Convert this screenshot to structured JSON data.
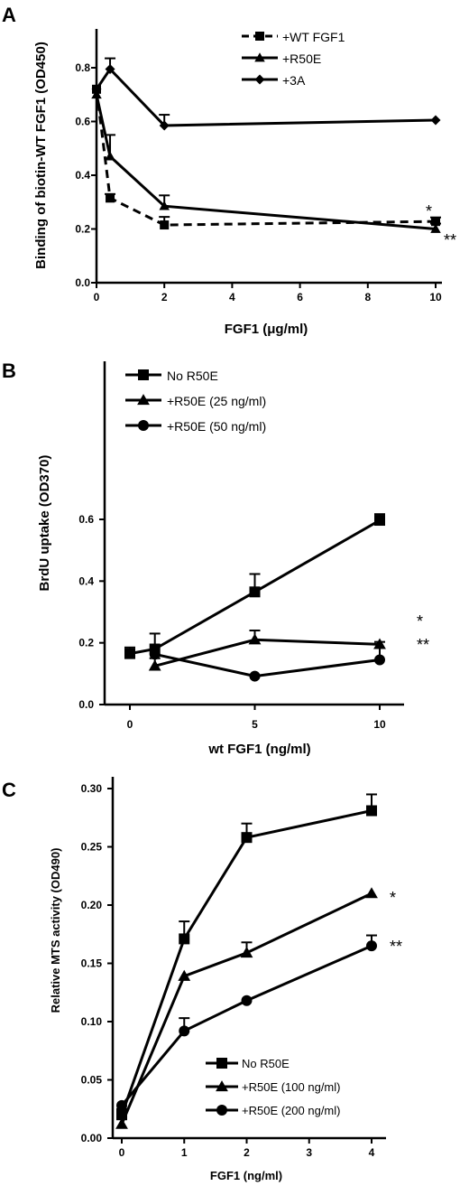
{
  "chart_data": [
    {
      "panel": "A",
      "type": "line",
      "xlabel": "FGF1 (μg/ml)",
      "ylabel": "Binding of biotin-WT FGF1 (OD450)",
      "xlim": [
        0,
        10
      ],
      "ylim": [
        0,
        0.8
      ],
      "xticks": [
        "0",
        "2",
        "4",
        "6",
        "8",
        "10"
      ],
      "yticks": [
        "0.0",
        "0.2",
        "0.4",
        "0.6",
        "0.8"
      ],
      "legend_position": "top-right",
      "annotations": [
        "*",
        "**"
      ],
      "series": [
        {
          "name": "+WT FGF1",
          "marker": "square",
          "dashed": true,
          "x": [
            0,
            0.4,
            2,
            10
          ],
          "y": [
            0.72,
            0.315,
            0.215,
            0.228
          ],
          "err": [
            0,
            0.015,
            0.03,
            0.015
          ]
        },
        {
          "name": "+R50E",
          "marker": "triangle",
          "dashed": false,
          "x": [
            0,
            0.4,
            2,
            10
          ],
          "y": [
            0.7,
            0.47,
            0.285,
            0.2
          ],
          "err": [
            0,
            0.08,
            0.04,
            0.02
          ]
        },
        {
          "name": "+3A",
          "marker": "diamond",
          "dashed": false,
          "x": [
            0,
            0.4,
            2,
            10
          ],
          "y": [
            0.72,
            0.795,
            0.585,
            0.605
          ],
          "err": [
            0,
            0.04,
            0.04,
            0
          ]
        }
      ]
    },
    {
      "panel": "B",
      "type": "line",
      "xlabel": "wt FGF1 (ng/ml)",
      "ylabel": "BrdU uptake (OD370)",
      "xlim": [
        -1,
        12
      ],
      "ylim": [
        0,
        0.7
      ],
      "xticks": [
        "0",
        "5",
        "10"
      ],
      "yticks": [
        "0.0",
        "0.2",
        "0.4",
        "0.6"
      ],
      "legend_position": "top-left",
      "annotations": [
        "*",
        "**"
      ],
      "series": [
        {
          "name": "No R50E",
          "marker": "square",
          "dashed": false,
          "x": [
            0,
            1,
            5,
            10
          ],
          "y": [
            0.165,
            0.18,
            0.365,
            0.597
          ],
          "err": [
            0.02,
            0.05,
            0.058,
            0.02
          ]
        },
        {
          "name": "+R50E (25 ng/ml)",
          "marker": "triangle",
          "dashed": false,
          "x": [
            1,
            5,
            10
          ],
          "y": [
            0.125,
            0.21,
            0.195
          ],
          "err": [
            0.025,
            0.03,
            0
          ]
        },
        {
          "name": "+R50E (50 ng/ml)",
          "marker": "circle",
          "dashed": false,
          "x": [
            1,
            5,
            10
          ],
          "y": [
            0.163,
            0.092,
            0.145
          ],
          "err": [
            0,
            0,
            0.058
          ]
        }
      ]
    },
    {
      "panel": "C",
      "type": "line",
      "xlabel": "FGF1 (ng/ml)",
      "ylabel": "Relative MTS activity (OD490)",
      "xlim": [
        0,
        4.2
      ],
      "ylim": [
        0,
        0.31
      ],
      "xticks": [
        "0",
        "1",
        "2",
        "3",
        "4"
      ],
      "yticks": [
        "0.00",
        "0.05",
        "0.10",
        "0.15",
        "0.20",
        "0.25",
        "0.30"
      ],
      "legend_position": "bottom-right",
      "annotations": [
        "*",
        "**"
      ],
      "series": [
        {
          "name": "No R50E",
          "marker": "square",
          "dashed": false,
          "x": [
            0,
            1,
            2,
            4
          ],
          "y": [
            0.02,
            0.171,
            0.258,
            0.281
          ],
          "err": [
            0.005,
            0.015,
            0.012,
            0.014
          ]
        },
        {
          "name": "+R50E (100 ng/ml)",
          "marker": "triangle",
          "dashed": false,
          "x": [
            0,
            1,
            2,
            4
          ],
          "y": [
            0.012,
            0.139,
            0.159,
            0.21
          ],
          "err": [
            0.006,
            0,
            0.009,
            0
          ]
        },
        {
          "name": "+R50E (200 ng/ml)",
          "marker": "circle",
          "dashed": false,
          "x": [
            0,
            1,
            2,
            4
          ],
          "y": [
            0.028,
            0.092,
            0.118,
            0.165
          ],
          "err": [
            0,
            0.011,
            0,
            0.009
          ]
        }
      ]
    }
  ]
}
